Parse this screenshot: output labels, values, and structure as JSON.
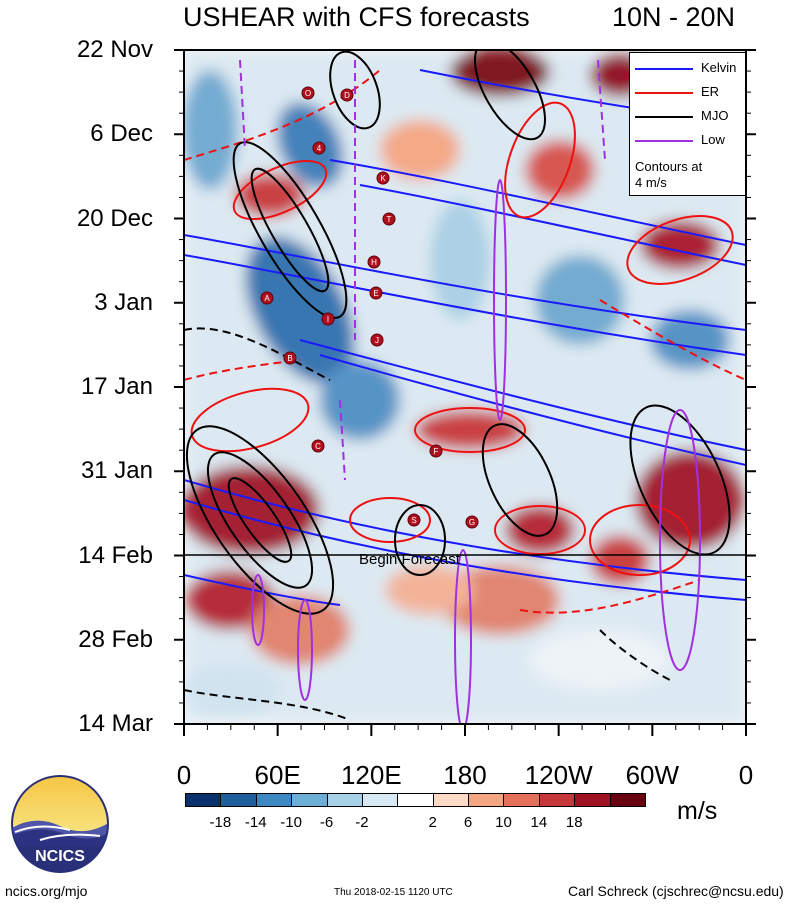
{
  "chart_data": {
    "type": "heatmap",
    "title": "USHEAR with CFS forecasts",
    "subtitle": "10N - 20N",
    "xlabel": "",
    "ylabel": "",
    "x_ticks": [
      "0",
      "60E",
      "120E",
      "180",
      "120W",
      "60W",
      "0"
    ],
    "y_ticks": [
      "22 Nov",
      "6 Dec",
      "20 Dec",
      "3 Jan",
      "17 Jan",
      "31 Jan",
      "14 Feb",
      "28 Feb",
      "14 Mar"
    ],
    "colorbar": {
      "units": "m/s",
      "labels": [
        "-18",
        "-14",
        "-10",
        "-6",
        "-2",
        "2",
        "6",
        "10",
        "14",
        "18"
      ],
      "colors": [
        "#08306b",
        "#1f5fa0",
        "#3b88c2",
        "#6baed6",
        "#a8d0e6",
        "#d8e9f3",
        "#ffffff",
        "#fddbc7",
        "#f4a582",
        "#e4705a",
        "#c6373a",
        "#9e1424",
        "#670010"
      ]
    },
    "forecast_label": "Begin Forecast",
    "legend": {
      "placement": "top-right",
      "entries": [
        {
          "name": "Kelvin",
          "color": "#1a1aff"
        },
        {
          "name": "ER",
          "color": "#ee1111"
        },
        {
          "name": "MJO",
          "color": "#000000"
        },
        {
          "name": "Low",
          "color": "#a030e0"
        }
      ],
      "note_line1": "Contours at",
      "note_line2": "4 m/s"
    },
    "storms": [
      "O",
      "D",
      "4",
      "K",
      "T",
      "H",
      "E",
      "A",
      "I",
      "J",
      "B",
      "C",
      "F",
      "S",
      "G"
    ]
  },
  "logo_text": "NCICS",
  "footer": {
    "left": "ncics.org/mjo",
    "middle": "Thu 2018-02-15 1120 UTC",
    "right": "Carl Schreck (cjschrec@ncsu.edu)"
  }
}
